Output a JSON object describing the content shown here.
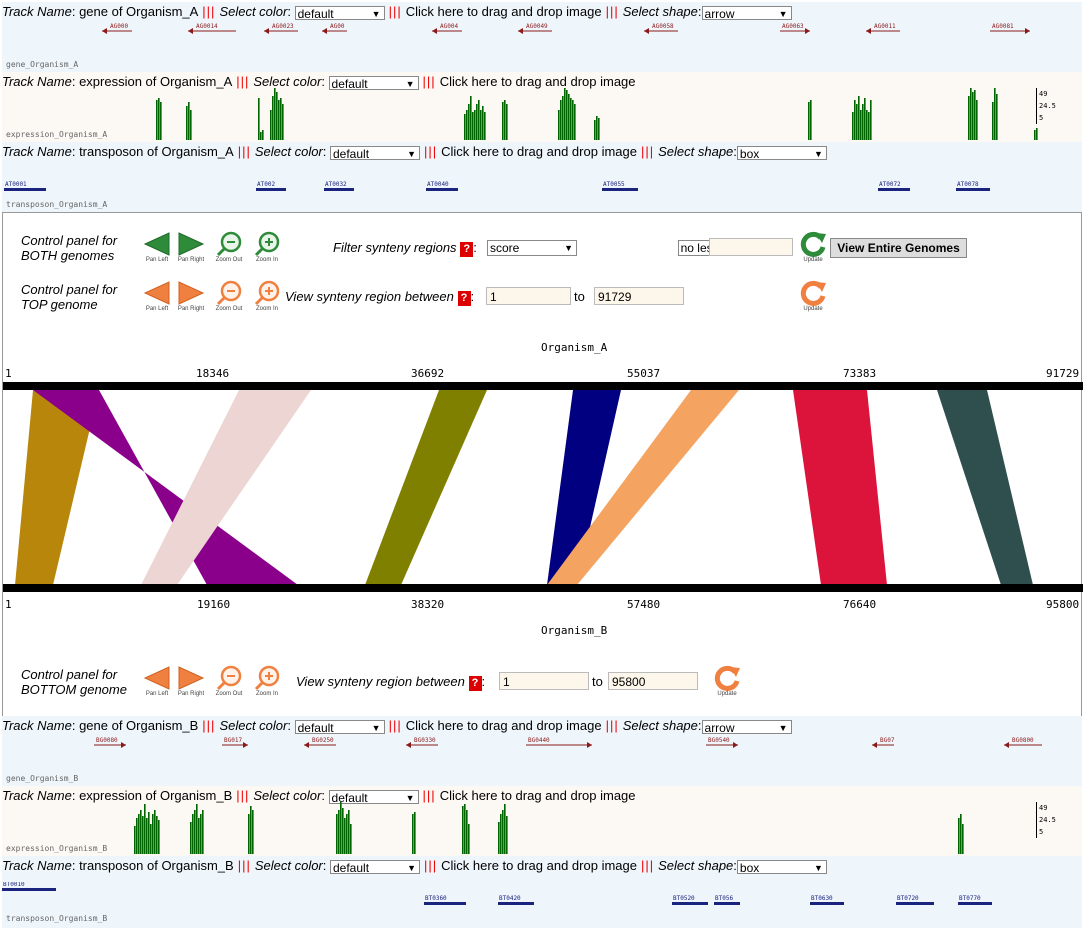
{
  "common": {
    "track_name_label": "Track Name",
    "select_color_label": "Select color",
    "select_color_value": "default",
    "drag_drop_text": "Click here to drag and drop image",
    "select_shape_label": "Select shape",
    "separator": "|||"
  },
  "top_tracks": {
    "gene": {
      "name": "gene of Organism_A",
      "shape": "arrow",
      "caption": "gene_Organism_A",
      "features": [
        "AG000",
        "AG0014",
        "AG0023",
        "AG00",
        "AG004",
        "AG0049",
        "AG0058",
        "AG0063",
        "AG0011",
        "AG0081"
      ]
    },
    "expression": {
      "name": "expression of Organism_A",
      "caption": "expression_Organism_A",
      "scale": [
        "49",
        "24.5",
        "5"
      ]
    },
    "transposon": {
      "name": "transposon of Organism_A",
      "shape": "box",
      "caption": "transposon_Organism_A",
      "features": [
        "AT0001",
        "AT002",
        "AT0032",
        "AT0040",
        "AT0055",
        "AT0072",
        "AT0078"
      ]
    }
  },
  "control_both": {
    "label_line1": "Control panel for",
    "label_line2": "BOTH genomes",
    "pan_left": "Pan Left",
    "pan_right": "Pan Right",
    "zoom_out": "Zoom Out",
    "zoom_in": "Zoom In",
    "filter_label": "Filter synteny regions",
    "filter_field": "score",
    "filter_op": "no less than",
    "filter_value": "",
    "update": "Update",
    "view_entire": "View Entire Genomes"
  },
  "control_top": {
    "label_line1": "Control panel for",
    "label_line2": "TOP genome",
    "pan_left": "Pan Left",
    "pan_right": "Pan Right",
    "zoom_out": "Zoom Out",
    "zoom_in": "Zoom In",
    "view_label": "View synteny region between",
    "from": "1",
    "to_label": "to",
    "to": "91729",
    "update": "Update"
  },
  "synteny": {
    "top_organism": "Organism_A",
    "bottom_organism": "Organism_B",
    "top_ticks": [
      "1",
      "18346",
      "36692",
      "55037",
      "73383",
      "91729"
    ],
    "bottom_ticks": [
      "1",
      "19160",
      "38320",
      "57480",
      "76640",
      "95800"
    ],
    "colors": [
      "#b8860b",
      "#8b008b",
      "#ecd5d2",
      "#808000",
      "#000080",
      "#f4a460",
      "#dc143c",
      "#2f4f4f"
    ]
  },
  "control_bottom": {
    "label_line1": "Control panel for",
    "label_line2": "BOTTOM genome",
    "pan_left": "Pan Left",
    "pan_right": "Pan Right",
    "zoom_out": "Zoom Out",
    "zoom_in": "Zoom In",
    "view_label": "View synteny region between",
    "from": "1",
    "to_label": "to",
    "to": "95800",
    "update": "Update"
  },
  "bottom_tracks": {
    "gene": {
      "name": "gene of Organism_B",
      "shape": "arrow",
      "caption": "gene_Organism_B",
      "features": [
        "BG0080",
        "BG017",
        "BG0250",
        "BG0330",
        "BG0440",
        "BG0540",
        "BG07",
        "BG0800"
      ]
    },
    "expression": {
      "name": "expression of Organism_B",
      "caption": "expression_Organism_B",
      "scale": [
        "49",
        "24.5",
        "5"
      ]
    },
    "transposon": {
      "name": "transposon of Organism_B",
      "shape": "box",
      "caption": "transposon_Organism_B",
      "features": [
        "BT0010",
        "BT0360",
        "BT0420",
        "BT0520",
        "BT056",
        "BT0630",
        "BT0720",
        "BT0770"
      ]
    }
  }
}
